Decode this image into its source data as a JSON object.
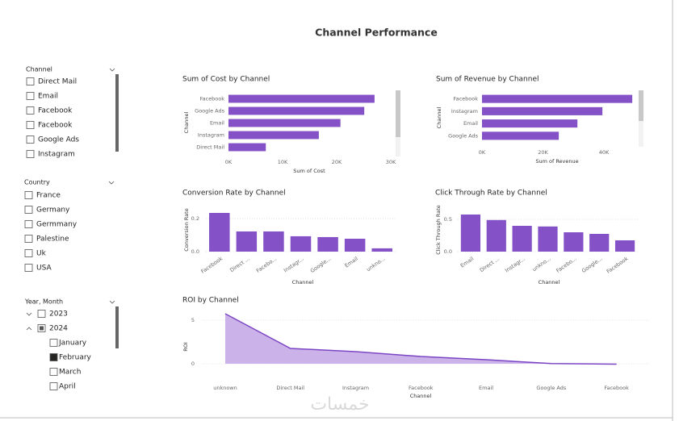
{
  "title": "Channel Performance",
  "watermark": "خمسات",
  "slicers": [
    {
      "title": "Channel",
      "items": [
        {
          "label": "Direct Mail",
          "checked": false
        },
        {
          "label": "Email",
          "checked": false
        },
        {
          "label": "Facebook",
          "checked": false
        },
        {
          "label": "Facebook",
          "checked": false
        },
        {
          "label": "Google Ads",
          "checked": false
        },
        {
          "label": "Instagram",
          "checked": false
        }
      ]
    },
    {
      "title": "Country",
      "items": [
        {
          "label": "France",
          "checked": false
        },
        {
          "label": "Germany",
          "checked": false
        },
        {
          "label": "Germmany",
          "checked": false
        },
        {
          "label": "Palestine",
          "checked": false
        },
        {
          "label": "Uk",
          "checked": false
        },
        {
          "label": "USA",
          "checked": false
        }
      ]
    },
    {
      "title": "Year, Month",
      "items": [
        {
          "label": "2023",
          "state": "unchecked",
          "expanded": false
        },
        {
          "label": "2024",
          "state": "partial",
          "expanded": true,
          "children": [
            {
              "label": "January",
              "state": "unchecked"
            },
            {
              "label": "February",
              "state": "checked"
            },
            {
              "label": "March",
              "state": "unchecked"
            },
            {
              "label": "April",
              "state": "unchecked"
            }
          ]
        }
      ]
    }
  ],
  "chart_data": [
    {
      "type": "hbar",
      "title": "Sum of Cost by Channel",
      "x_label": "Sum of Cost",
      "y_label": "Channel",
      "categories": [
        "Facebook",
        "Google Ads",
        "Email",
        "Instagram",
        "Direct Mail"
      ],
      "values": [
        27000,
        25100,
        20700,
        16700,
        6900
      ],
      "color": "#8452c6",
      "xlim": [
        0,
        31000
      ],
      "xticks": [
        {
          "value": 0,
          "label": "0K"
        },
        {
          "value": 10000,
          "label": "10K"
        },
        {
          "value": 20000,
          "label": "20K"
        },
        {
          "value": 30000,
          "label": "30K"
        }
      ]
    },
    {
      "type": "hbar",
      "title": "Sum of Revenue by Channel",
      "x_label": "Sum of Revenue",
      "y_label": "Channel",
      "categories": [
        "Facebook",
        "Instagram",
        "Email",
        "Google Ads"
      ],
      "values": [
        49300,
        39500,
        31300,
        25200
      ],
      "color": "#8452c6",
      "xlim": [
        0,
        52000
      ],
      "xticks": [
        {
          "value": 0,
          "label": "0K"
        },
        {
          "value": 20000,
          "label": "20K"
        },
        {
          "value": 40000,
          "label": "40K"
        }
      ]
    },
    {
      "type": "vbar",
      "title": "Conversion Rate by Channel",
      "x_label": "Channel",
      "y_label": "Conversion Rate",
      "categories": [
        "Facebook",
        "Direct ...",
        "Facebo...",
        "Instagr...",
        "Google...",
        "Email",
        "unkno..."
      ],
      "values": [
        0.234,
        0.122,
        0.122,
        0.093,
        0.088,
        0.078,
        0.02
      ],
      "color": "#8452c6",
      "ylim": [
        0,
        0.27
      ],
      "yticks": [
        {
          "value": 0,
          "label": "0.0"
        },
        {
          "value": 0.2,
          "label": "0.2"
        }
      ],
      "grid": true
    },
    {
      "type": "vbar",
      "title": "Click Through Rate by Channel",
      "x_label": "Channel",
      "y_label": "Click Through Rate",
      "categories": [
        "Email",
        "Direct ...",
        "Instagr...",
        "unkno...",
        "Facebo...",
        "Google...",
        "Facebook"
      ],
      "values": [
        0.575,
        0.49,
        0.4,
        0.39,
        0.3,
        0.275,
        0.175
      ],
      "color": "#8452c6",
      "ylim": [
        0,
        0.7
      ],
      "yticks": [
        {
          "value": 0,
          "label": "0.0"
        },
        {
          "value": 0.5,
          "label": "0.5"
        }
      ],
      "grid": true
    },
    {
      "type": "area",
      "title": "ROI by Channel",
      "x_label": "Channel",
      "y_label": "ROI",
      "categories": [
        "unknown",
        "Direct Mail",
        "Instagram",
        "Facebook",
        "Email",
        "Google Ads",
        "Facebook"
      ],
      "values": [
        5.74,
        1.76,
        1.39,
        0.83,
        0.46,
        0.02,
        -0.05
      ],
      "color": "#7c45c4",
      "fill": "#cbb3ea",
      "ylim": [
        -0.5,
        6
      ],
      "yticks": [
        0,
        5
      ],
      "grid": true
    }
  ]
}
